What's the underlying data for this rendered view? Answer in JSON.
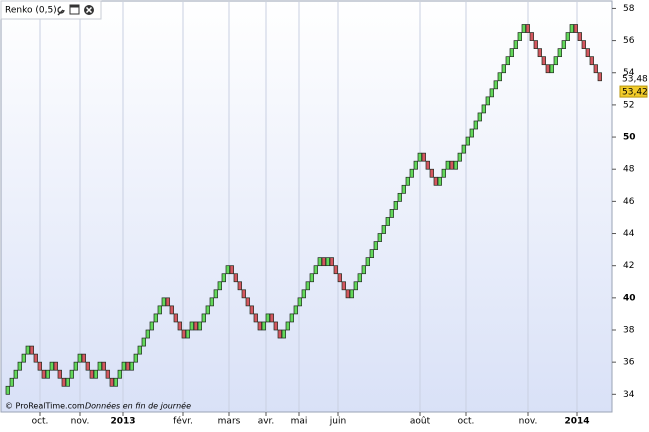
{
  "chart_data": {
    "type": "renko",
    "title": "Renko (0,5)",
    "box_size": 0.5,
    "footer": "© ProRealTime.com",
    "footer_note": "Données en fin de journée",
    "x_labels": [
      "oct.",
      "nov.",
      "2013",
      "févr.",
      "mars",
      "avr.",
      "mai",
      "juin",
      "août",
      "oct.",
      "nov.",
      "2014"
    ],
    "values": [
      34.5,
      35,
      35.5,
      36,
      36.5,
      37,
      36.5,
      36,
      35.5,
      35,
      35.5,
      36,
      35.5,
      35,
      34.5,
      35,
      35.5,
      36,
      36.5,
      36,
      35.5,
      35,
      35.5,
      36,
      35.5,
      35,
      34.5,
      35,
      35.5,
      36,
      35.5,
      36,
      36.5,
      37,
      37.5,
      38,
      38.5,
      39,
      39.5,
      40,
      39.5,
      39,
      38.5,
      38,
      37.5,
      38,
      38.5,
      38,
      38.5,
      39,
      39.5,
      40,
      40.5,
      41,
      41.5,
      42,
      41.5,
      41,
      40.5,
      40,
      39.5,
      39,
      38.5,
      38,
      38.5,
      39,
      38.5,
      38,
      37.5,
      38,
      38.5,
      39,
      39.5,
      40,
      40.5,
      41,
      41.5,
      42,
      42.5,
      42,
      42.5,
      42,
      41.5,
      41,
      40.5,
      40,
      40.5,
      41,
      41.5,
      42,
      42.5,
      43,
      43.5,
      44,
      44.5,
      45,
      45.5,
      46,
      46.5,
      47,
      47.5,
      48,
      48.5,
      49,
      48.5,
      48,
      47.5,
      47,
      47.5,
      48,
      48.5,
      48,
      48.5,
      49,
      49.5,
      50,
      50.5,
      51,
      51.5,
      52,
      52.5,
      53,
      53.5,
      54,
      54.5,
      55,
      55.5,
      56,
      56.5,
      57,
      56.5,
      56,
      55.5,
      55,
      54.5,
      54,
      54.5,
      55,
      55.5,
      56,
      56.5,
      57,
      56.5,
      56,
      55.5,
      55,
      54.5,
      54,
      53.5
    ],
    "colors": {
      "up": "#63d85a",
      "down": "#d4575f",
      "edge": "#1e2a1e"
    },
    "ylim": [
      32.9,
      58.4
    ],
    "yticks": [
      34,
      36,
      38,
      40,
      42,
      44,
      46,
      48,
      50,
      52,
      54,
      56,
      58
    ],
    "last_close": {
      "value": 53.48,
      "label": "53,48"
    },
    "last_price": {
      "value": 53.42,
      "label": "53,42"
    },
    "grid": true
  }
}
